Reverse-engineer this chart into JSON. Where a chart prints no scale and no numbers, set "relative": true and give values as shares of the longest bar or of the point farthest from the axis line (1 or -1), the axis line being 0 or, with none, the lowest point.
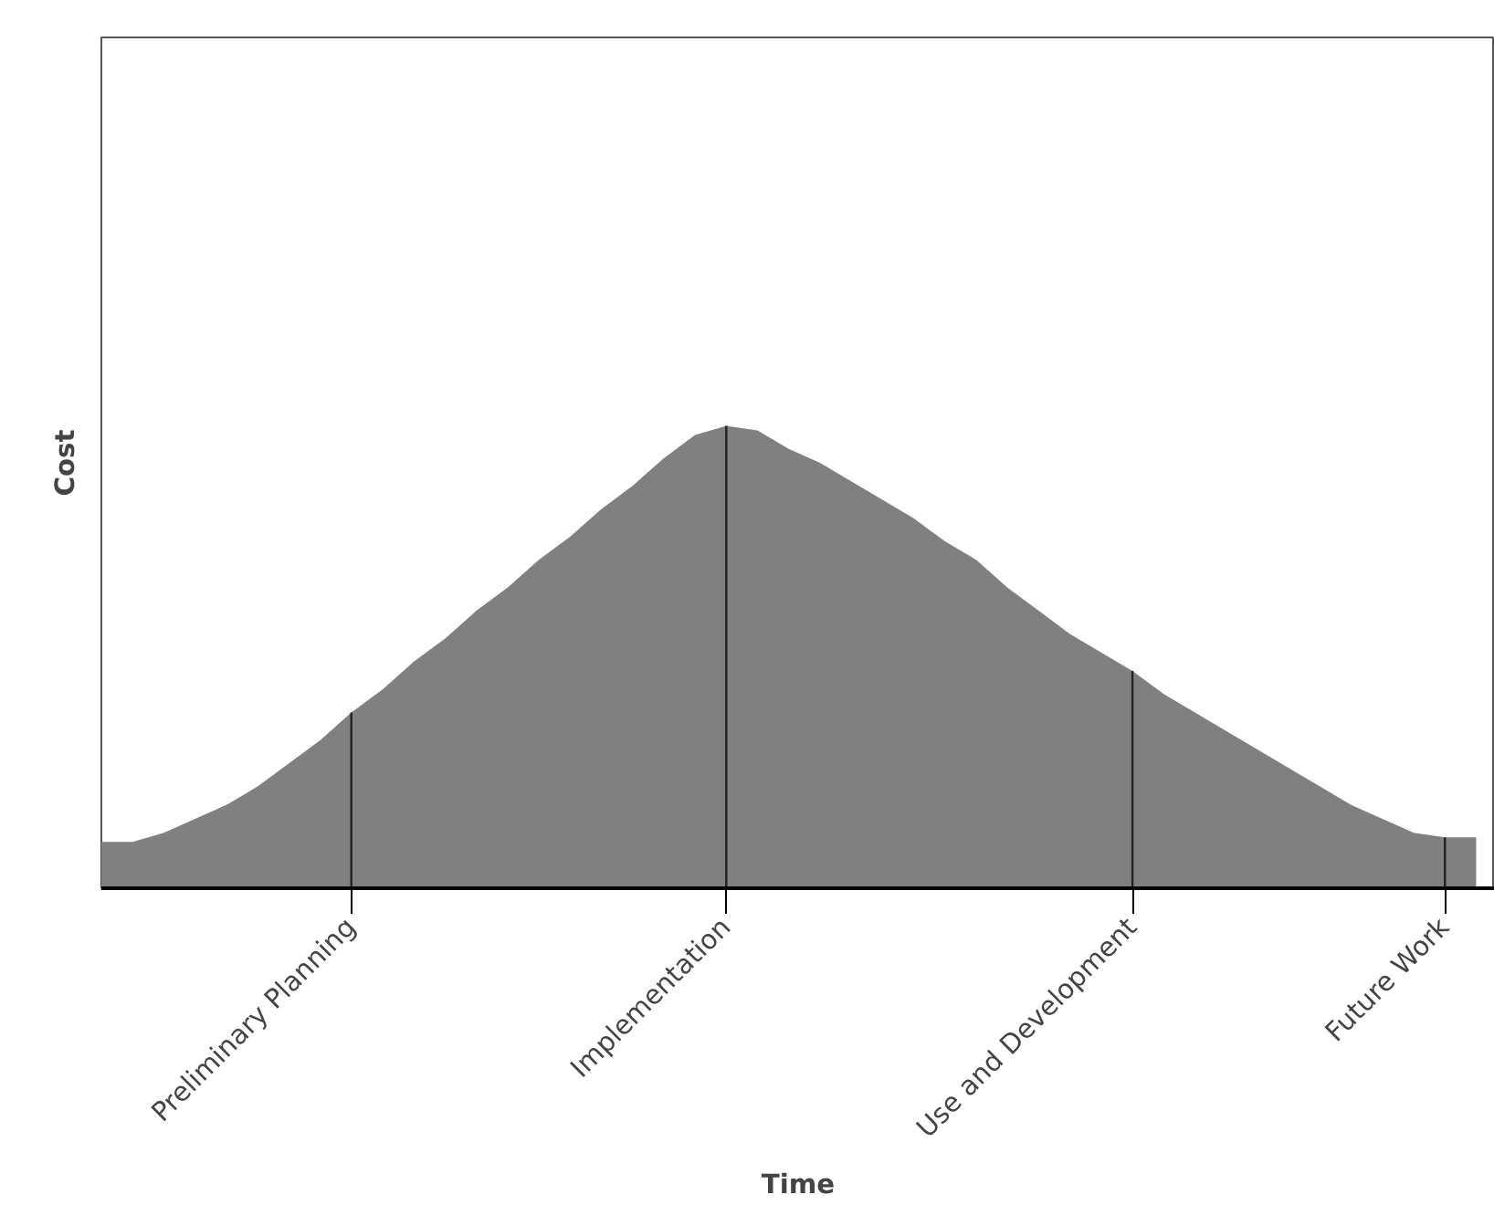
{
  "chart_data": {
    "type": "area",
    "relative": true,
    "xlabel": "Time",
    "ylabel": "Cost",
    "color": "#808080",
    "grid": false,
    "ref_lines": [
      {
        "axis": "x",
        "value": "Preliminary Planning",
        "color": "#222222"
      },
      {
        "axis": "x",
        "value": "Implementation",
        "color": "#222222"
      },
      {
        "axis": "x",
        "value": "Use and Development",
        "color": "#222222"
      },
      {
        "axis": "x",
        "value": "Future Work",
        "color": "#222222"
      }
    ],
    "categories": [
      null,
      null,
      null,
      null,
      null,
      null,
      null,
      null,
      "Preliminary Planning",
      null,
      null,
      null,
      null,
      null,
      null,
      null,
      null,
      null,
      null,
      null,
      "Implementation",
      null,
      null,
      null,
      null,
      null,
      null,
      null,
      null,
      null,
      null,
      null,
      null,
      "Use and Development",
      null,
      null,
      null,
      null,
      null,
      null,
      null,
      null,
      null,
      "Future Work",
      null
    ],
    "values": [
      0.1,
      0.1,
      0.12,
      0.15,
      0.18,
      0.22,
      0.27,
      0.32,
      0.38,
      0.43,
      0.49,
      0.54,
      0.6,
      0.65,
      0.71,
      0.76,
      0.82,
      0.87,
      0.93,
      0.98,
      1.0,
      0.99,
      0.95,
      0.92,
      0.88,
      0.84,
      0.8,
      0.75,
      0.71,
      0.65,
      0.6,
      0.55,
      0.51,
      0.47,
      0.42,
      0.38,
      0.34,
      0.3,
      0.26,
      0.22,
      0.18,
      0.15,
      0.12,
      0.11,
      0.11
    ]
  }
}
